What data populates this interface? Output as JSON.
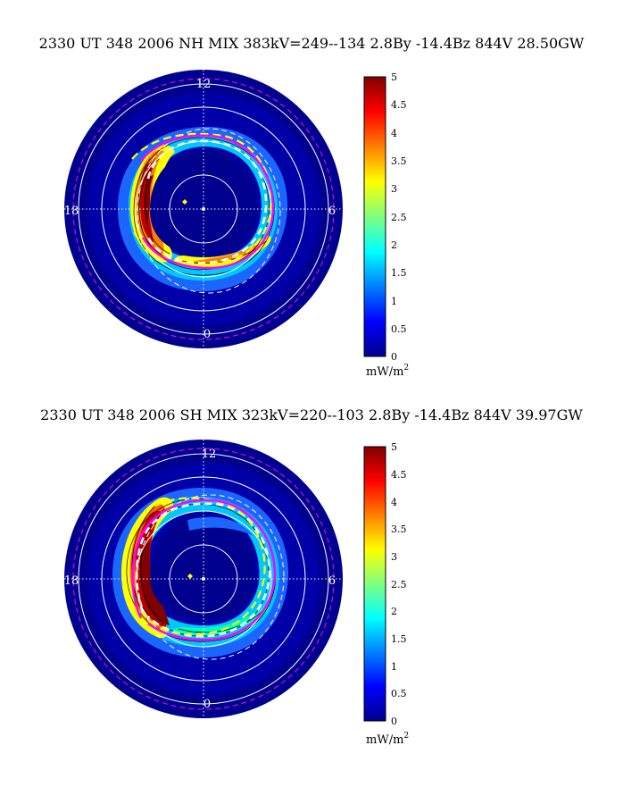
{
  "panels": [
    {
      "title": "2330 UT 348 2006 NH MIX 383kV=249--134  2.8By -14.4Bz 844V 28.50GW",
      "mlt_labels": {
        "top": "12",
        "bottom": "0",
        "left": "18",
        "right": "6"
      },
      "colorbar": {
        "ticks": [
          "0",
          "0.5",
          "1",
          "1.5",
          "2",
          "2.5",
          "3",
          "3.5",
          "4",
          "4.5",
          "5"
        ],
        "unit": "mW/m",
        "unit_exp": "2"
      }
    },
    {
      "title": "2330 UT 348 2006 SH MIX 323kV=220--103  2.8By -14.4Bz 844V 39.97GW",
      "mlt_labels": {
        "top": "12",
        "bottom": "0",
        "left": "18",
        "right": "6"
      },
      "colorbar": {
        "ticks": [
          "0",
          "0.5",
          "1",
          "1.5",
          "2",
          "2.5",
          "3",
          "3.5",
          "4",
          "4.5",
          "5"
        ],
        "unit": "mW/m",
        "unit_exp": "2"
      }
    }
  ],
  "chart_data": [
    {
      "type": "heatmap",
      "hemisphere": "NH",
      "title": "2330 UT 348 2006 NH MIX 383kV=249--134  2.8By -14.4Bz 844V 28.50GW",
      "colorbar_range": [
        0,
        5
      ],
      "colorbar_label": "mW/m^2",
      "colormap": "jet",
      "cross_polar_cap_potential_kV": 383,
      "potential_max_kV": 249,
      "potential_min_kV": -134,
      "By_nT": 2.8,
      "Bz_nT": -14.4,
      "Vsw_km_s": 844,
      "hemispheric_power_GW": 28.5
    },
    {
      "type": "heatmap",
      "hemisphere": "SH",
      "title": "2330 UT 348 2006 SH MIX 323kV=220--103  2.8By -14.4Bz 844V 39.97GW",
      "colorbar_range": [
        0,
        5
      ],
      "colorbar_label": "mW/m^2",
      "colormap": "jet",
      "cross_polar_cap_potential_kV": 323,
      "potential_max_kV": 220,
      "potential_min_kV": -103,
      "By_nT": 2.8,
      "Bz_nT": -14.4,
      "Vsw_km_s": 844,
      "hemispheric_power_GW": 39.97
    }
  ],
  "colors": {
    "background_disk": "#00008f",
    "grid": "#ffffff",
    "magenta": "#ff00ff",
    "yellow": "#ffff00"
  }
}
